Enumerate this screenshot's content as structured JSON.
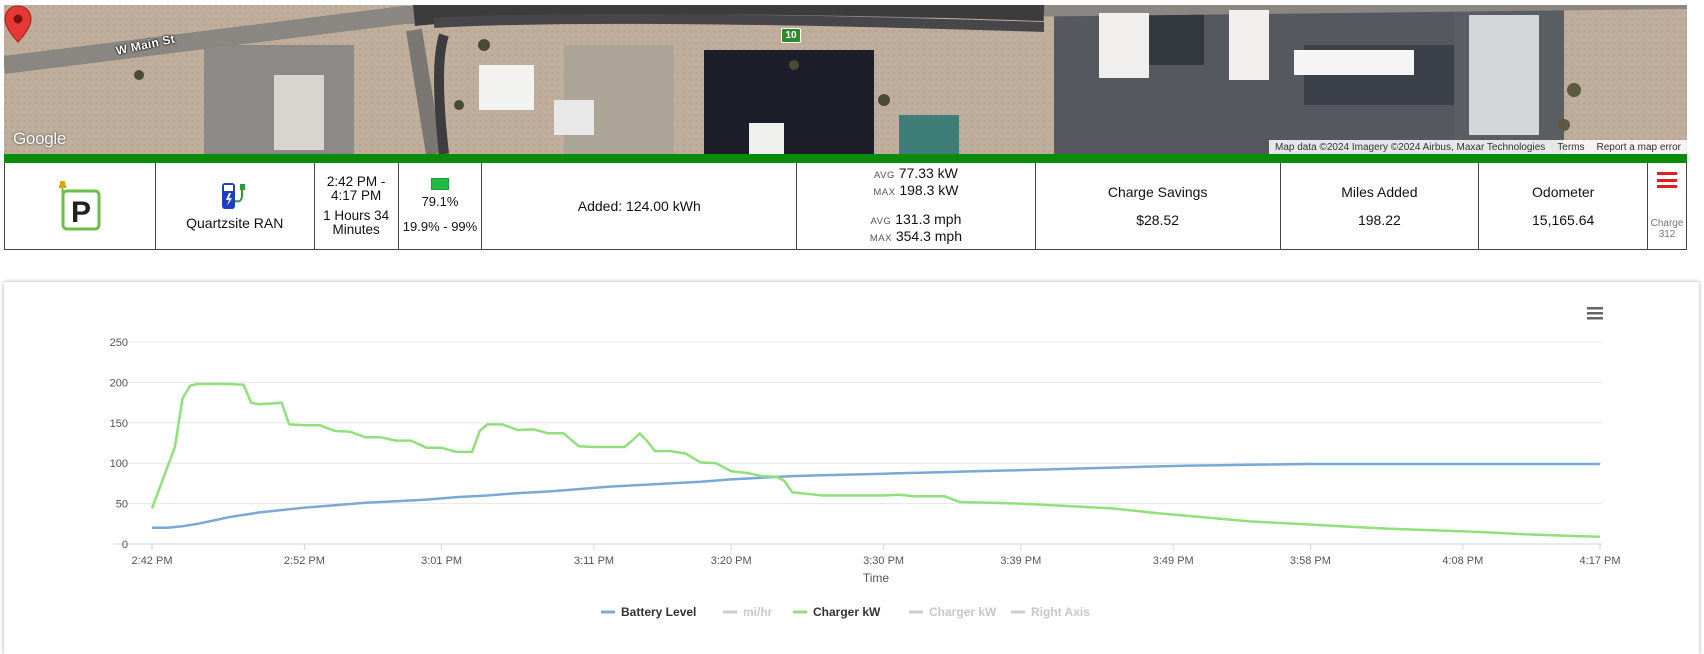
{
  "map": {
    "street_label": "W Main St",
    "route_number": "10",
    "logo": "Google",
    "attribution": "Map data ©2024 Imagery ©2024 Airbus, Maxar Technologies",
    "terms": "Terms",
    "report": "Report a map error",
    "pin_icon": "map-marker-icon"
  },
  "colors": {
    "header_green": "#0c8a0c",
    "battery_series": "#7aa9d8",
    "charger_series": "#90e07c",
    "menu_red": "#e02020"
  },
  "stats": {
    "logo_icon": "parking-charger-icon",
    "station_icon": "charging-station-icon",
    "station_name": "Quartzsite RAN",
    "time_range_line1": "2:42 PM -",
    "time_range_line2": "4:17 PM",
    "duration_line1": "1 Hours 34",
    "duration_line2": "Minutes",
    "battery_icon": "battery-icon",
    "battery_end": "79.1%",
    "battery_range": "19.9% - 99%",
    "added": "Added: 124.00 kWh",
    "avg_label": "AVG",
    "max_label": "MAX",
    "avg_kw": "77.33 kW",
    "max_kw": "198.3 kW",
    "avg_mph": "131.3 mph",
    "max_mph": "354.3 mph",
    "savings_label": "Charge Savings",
    "savings_value": "$28.52",
    "miles_label": "Miles Added",
    "miles_value": "198.22",
    "odometer_label": "Odometer",
    "odometer_value": "15,165.64",
    "menu_icon": "hamburger-menu-icon",
    "charge_label": "Charge",
    "charge_number": "312"
  },
  "chart_data": {
    "type": "line",
    "xlabel": "Time",
    "ylabel": "",
    "ylim": [
      0,
      250
    ],
    "yticks": [
      0,
      50,
      100,
      150,
      200,
      250
    ],
    "xlim_minutes": [
      0,
      95
    ],
    "xticks": [
      {
        "label": "2:42 PM",
        "t": 0
      },
      {
        "label": "2:52 PM",
        "t": 10
      },
      {
        "label": "3:01 PM",
        "t": 19
      },
      {
        "label": "3:11 PM",
        "t": 29
      },
      {
        "label": "3:20 PM",
        "t": 38
      },
      {
        "label": "3:30 PM",
        "t": 48
      },
      {
        "label": "3:39 PM",
        "t": 57
      },
      {
        "label": "3:49 PM",
        "t": 67
      },
      {
        "label": "3:58 PM",
        "t": 76
      },
      {
        "label": "4:08 PM",
        "t": 86
      },
      {
        "label": "4:17 PM",
        "t": 95
      }
    ],
    "grid": true,
    "legend_position": "bottom-center",
    "series": [
      {
        "name": "Battery Level",
        "color": "#7aa9d8",
        "visible": true,
        "points": [
          [
            0,
            20
          ],
          [
            1,
            20
          ],
          [
            2,
            22
          ],
          [
            3,
            25
          ],
          [
            4,
            29
          ],
          [
            5,
            33
          ],
          [
            6,
            36
          ],
          [
            7,
            39
          ],
          [
            8,
            41
          ],
          [
            9,
            43
          ],
          [
            10,
            45
          ],
          [
            12,
            48
          ],
          [
            14,
            51
          ],
          [
            16,
            53
          ],
          [
            18,
            55
          ],
          [
            20,
            58
          ],
          [
            22,
            60
          ],
          [
            24,
            63
          ],
          [
            26,
            65
          ],
          [
            28,
            68
          ],
          [
            30,
            71
          ],
          [
            32,
            73
          ],
          [
            34,
            75
          ],
          [
            36,
            77
          ],
          [
            38,
            80
          ],
          [
            40,
            82
          ],
          [
            42,
            84
          ],
          [
            44,
            85
          ],
          [
            46,
            86
          ],
          [
            48,
            87
          ],
          [
            50,
            88
          ],
          [
            52,
            89
          ],
          [
            54,
            90
          ],
          [
            56,
            91
          ],
          [
            58,
            92
          ],
          [
            60,
            93
          ],
          [
            62,
            94
          ],
          [
            64,
            95
          ],
          [
            66,
            96
          ],
          [
            68,
            97
          ],
          [
            70,
            97.5
          ],
          [
            72,
            98
          ],
          [
            74,
            98.5
          ],
          [
            76,
            99
          ],
          [
            78,
            99
          ],
          [
            80,
            99
          ],
          [
            85,
            99
          ],
          [
            90,
            99
          ],
          [
            95,
            99
          ]
        ]
      },
      {
        "name": "mi/hr",
        "color": "#cccccc",
        "visible": false,
        "points": []
      },
      {
        "name": "Charger kW",
        "color": "#90e07c",
        "visible": true,
        "points": [
          [
            0,
            44
          ],
          [
            1.5,
            120
          ],
          [
            2,
            180
          ],
          [
            2.5,
            196
          ],
          [
            3,
            198
          ],
          [
            4,
            198
          ],
          [
            5,
            198
          ],
          [
            6,
            197
          ],
          [
            6.5,
            175
          ],
          [
            7,
            173
          ],
          [
            8,
            174
          ],
          [
            8.5,
            175
          ],
          [
            9,
            148
          ],
          [
            10,
            147
          ],
          [
            11,
            147
          ],
          [
            12,
            140
          ],
          [
            13,
            139
          ],
          [
            14,
            132
          ],
          [
            15,
            132
          ],
          [
            16,
            128
          ],
          [
            17,
            128
          ],
          [
            18,
            119
          ],
          [
            19,
            119
          ],
          [
            20,
            114
          ],
          [
            21,
            114
          ],
          [
            21.5,
            140
          ],
          [
            22,
            148
          ],
          [
            23,
            148
          ],
          [
            24,
            141
          ],
          [
            25,
            142
          ],
          [
            26,
            137
          ],
          [
            27,
            137
          ],
          [
            28,
            121
          ],
          [
            29,
            120
          ],
          [
            30,
            120
          ],
          [
            31,
            120
          ],
          [
            31.5,
            128
          ],
          [
            32,
            137
          ],
          [
            32.5,
            127
          ],
          [
            33,
            115
          ],
          [
            34,
            115
          ],
          [
            35,
            112
          ],
          [
            36,
            101
          ],
          [
            37,
            100
          ],
          [
            38,
            90
          ],
          [
            39,
            88
          ],
          [
            40,
            84
          ],
          [
            41,
            83
          ],
          [
            41.5,
            78
          ],
          [
            42,
            64
          ],
          [
            43,
            62
          ],
          [
            44,
            60
          ],
          [
            46,
            60
          ],
          [
            48,
            60
          ],
          [
            49,
            61
          ],
          [
            50,
            59
          ],
          [
            52,
            59
          ],
          [
            53,
            52
          ],
          [
            55,
            51
          ],
          [
            57,
            50
          ],
          [
            60,
            47
          ],
          [
            63,
            44
          ],
          [
            66,
            38
          ],
          [
            69,
            33
          ],
          [
            72,
            28
          ],
          [
            75,
            25
          ],
          [
            78,
            22
          ],
          [
            81,
            19
          ],
          [
            84,
            17
          ],
          [
            87,
            15
          ],
          [
            90,
            12
          ],
          [
            93,
            10
          ],
          [
            95,
            9
          ]
        ]
      },
      {
        "name": "Charger kW",
        "color": "#cccccc",
        "visible": false,
        "points": []
      },
      {
        "name": "Right Axis",
        "color": "#cccccc",
        "visible": false,
        "points": []
      }
    ]
  },
  "chart_menu_icon": "hamburger-menu-icon"
}
